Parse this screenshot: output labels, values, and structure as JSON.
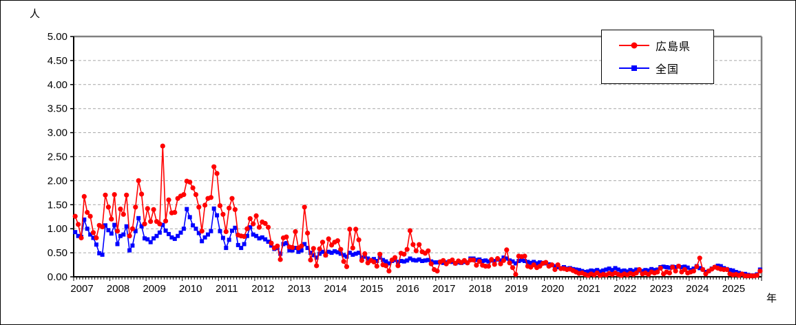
{
  "chart_data": {
    "type": "line",
    "title": "",
    "ylabel": "人",
    "xlabel": "年",
    "ylim": [
      0,
      5
    ],
    "ytick_step": 0.5,
    "ytick_labels": [
      "0.00",
      "0.50",
      "1.00",
      "1.50",
      "2.00",
      "2.50",
      "3.00",
      "3.50",
      "4.00",
      "4.50",
      "5.00"
    ],
    "grid": "dashed horizontal at every 0.50",
    "legend_position": "top-right inside plot, boxed",
    "x_unit": "monthly points, Jan 2007 - Dec 2025",
    "year_labels": [
      "2007",
      "2008",
      "2009",
      "2010",
      "2011",
      "2012",
      "2013",
      "2014",
      "2015",
      "2016",
      "2017",
      "2018",
      "2019",
      "2020",
      "2021",
      "2022",
      "2023",
      "2024",
      "2025"
    ],
    "series": [
      {
        "name": "広島県",
        "color": "#ff0000",
        "marker": "circle",
        "values": [
          1.26,
          1.09,
          0.81,
          1.67,
          1.34,
          1.26,
          0.92,
          0.81,
          1.07,
          1.04,
          1.7,
          1.45,
          1.2,
          1.71,
          0.95,
          1.41,
          1.3,
          1.7,
          0.85,
          1.0,
          1.45,
          2.0,
          1.72,
          1.1,
          1.42,
          1.15,
          1.4,
          1.15,
          1.1,
          2.72,
          1.16,
          1.6,
          1.33,
          1.34,
          1.63,
          1.68,
          1.71,
          1.99,
          1.97,
          1.85,
          1.71,
          1.45,
          0.95,
          1.49,
          1.63,
          1.65,
          2.29,
          2.15,
          1.48,
          1.3,
          0.94,
          1.43,
          1.63,
          1.4,
          0.87,
          0.85,
          0.84,
          1.0,
          1.21,
          1.1,
          1.27,
          1.03,
          1.14,
          1.11,
          1.03,
          0.7,
          0.6,
          0.64,
          0.36,
          0.81,
          0.83,
          0.62,
          0.61,
          0.94,
          0.6,
          0.64,
          1.45,
          0.91,
          0.35,
          0.59,
          0.23,
          0.58,
          0.72,
          0.45,
          0.79,
          0.66,
          0.72,
          0.75,
          0.57,
          0.32,
          0.21,
          0.99,
          0.6,
          0.99,
          0.77,
          0.34,
          0.48,
          0.29,
          0.34,
          0.31,
          0.22,
          0.47,
          0.25,
          0.23,
          0.12,
          0.35,
          0.4,
          0.23,
          0.49,
          0.47,
          0.57,
          0.96,
          0.67,
          0.54,
          0.67,
          0.52,
          0.49,
          0.54,
          0.27,
          0.15,
          0.12,
          0.31,
          0.34,
          0.27,
          0.32,
          0.35,
          0.28,
          0.33,
          0.3,
          0.34,
          0.29,
          0.35,
          0.35,
          0.24,
          0.32,
          0.24,
          0.22,
          0.22,
          0.36,
          0.26,
          0.38,
          0.27,
          0.34,
          0.56,
          0.29,
          0.19,
          0.05,
          0.43,
          0.42,
          0.43,
          0.22,
          0.2,
          0.25,
          0.19,
          0.22,
          0.28,
          0.3,
          0.22,
          0.25,
          0.15,
          0.25,
          0.17,
          0.17,
          0.15,
          0.16,
          0.13,
          0.1,
          0.07,
          0.08,
          0.05,
          0.03,
          0.06,
          0.04,
          0.08,
          0.03,
          0.05,
          0.04,
          0.07,
          0.05,
          0.08,
          0.05,
          0.03,
          0.06,
          0.04,
          0.07,
          0.05,
          0.08,
          0.15,
          0.06,
          0.08,
          0.05,
          0.1,
          0.08,
          0.1,
          0.18,
          0.06,
          0.1,
          0.08,
          0.2,
          0.12,
          0.22,
          0.1,
          0.15,
          0.08,
          0.1,
          0.12,
          0.21,
          0.39,
          0.15,
          0.06,
          0.12,
          0.16,
          0.2,
          0.18,
          0.16,
          0.15,
          0.15,
          0.06,
          0.04,
          0.05,
          0.03,
          0.06,
          0.02,
          0.02,
          0.02,
          0.02,
          0.03,
          0.12
        ]
      },
      {
        "name": "全国",
        "color": "#0000ff",
        "marker": "square",
        "values": [
          0.93,
          0.85,
          0.83,
          1.19,
          1.0,
          0.88,
          0.81,
          0.67,
          0.49,
          0.46,
          1.07,
          0.97,
          0.9,
          1.08,
          0.68,
          0.85,
          0.88,
          1.05,
          0.55,
          0.65,
          0.95,
          1.22,
          1.05,
          0.8,
          0.78,
          0.72,
          0.8,
          0.85,
          0.92,
          1.08,
          0.96,
          0.89,
          0.82,
          0.79,
          0.85,
          0.92,
          1.0,
          1.41,
          1.24,
          1.07,
          1.0,
          0.91,
          0.74,
          0.82,
          0.88,
          0.95,
          1.42,
          1.28,
          0.95,
          0.81,
          0.6,
          0.77,
          0.96,
          1.02,
          0.66,
          0.6,
          0.68,
          0.85,
          1.03,
          0.88,
          0.85,
          0.8,
          0.82,
          0.78,
          0.73,
          0.65,
          0.58,
          0.6,
          0.48,
          0.68,
          0.7,
          0.55,
          0.55,
          0.6,
          0.52,
          0.55,
          0.68,
          0.6,
          0.5,
          0.45,
          0.4,
          0.48,
          0.52,
          0.45,
          0.52,
          0.5,
          0.53,
          0.51,
          0.48,
          0.45,
          0.42,
          0.5,
          0.46,
          0.48,
          0.5,
          0.4,
          0.42,
          0.38,
          0.35,
          0.37,
          0.33,
          0.4,
          0.35,
          0.32,
          0.28,
          0.33,
          0.35,
          0.31,
          0.33,
          0.32,
          0.34,
          0.38,
          0.35,
          0.34,
          0.36,
          0.33,
          0.34,
          0.35,
          0.32,
          0.3,
          0.3,
          0.31,
          0.29,
          0.3,
          0.32,
          0.31,
          0.28,
          0.3,
          0.29,
          0.31,
          0.3,
          0.38,
          0.38,
          0.35,
          0.36,
          0.33,
          0.34,
          0.32,
          0.34,
          0.33,
          0.36,
          0.34,
          0.4,
          0.38,
          0.34,
          0.32,
          0.28,
          0.33,
          0.35,
          0.33,
          0.31,
          0.29,
          0.31,
          0.28,
          0.3,
          0.29,
          0.28,
          0.26,
          0.24,
          0.22,
          0.2,
          0.18,
          0.2,
          0.17,
          0.18,
          0.16,
          0.15,
          0.14,
          0.12,
          0.1,
          0.11,
          0.13,
          0.12,
          0.14,
          0.11,
          0.13,
          0.15,
          0.17,
          0.14,
          0.18,
          0.15,
          0.12,
          0.13,
          0.11,
          0.14,
          0.12,
          0.15,
          0.13,
          0.12,
          0.14,
          0.13,
          0.16,
          0.14,
          0.15,
          0.2,
          0.21,
          0.2,
          0.19,
          0.21,
          0.2,
          0.22,
          0.2,
          0.21,
          0.19,
          0.14,
          0.17,
          0.22,
          0.18,
          0.15,
          0.1,
          0.12,
          0.17,
          0.2,
          0.23,
          0.22,
          0.18,
          0.16,
          0.14,
          0.13,
          0.1,
          0.08,
          0.05,
          0.06,
          0.04,
          0.03,
          0.03,
          0.05,
          0.15
        ]
      }
    ],
    "style_colors": {
      "gridline": "#a6a6a6",
      "plot_border_gray": "#808080",
      "axis_black": "#000000"
    }
  },
  "legend": {
    "items": [
      {
        "label": "広島県"
      },
      {
        "label": "全国"
      }
    ]
  }
}
